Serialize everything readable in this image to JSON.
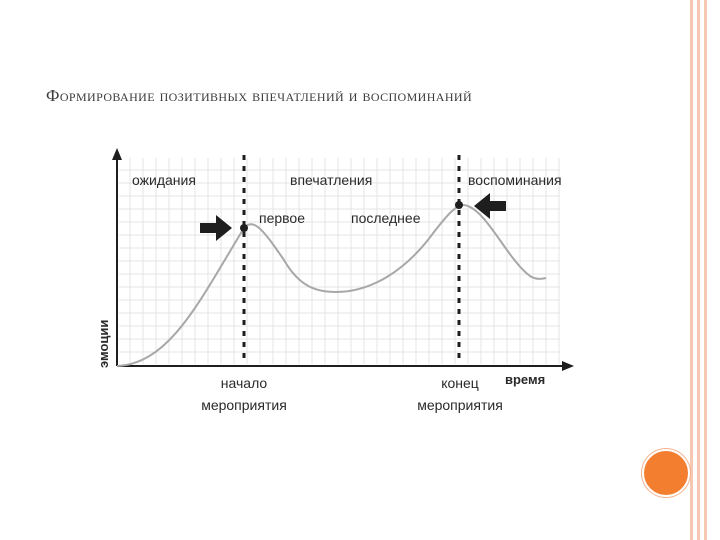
{
  "slide": {
    "title": "Формирование позитивных впечатлений и воспоминаний"
  },
  "diagram": {
    "y_axis_label": "эмоции",
    "x_axis_label": "время",
    "zone_labels": {
      "expectations": "ожидания",
      "impressions": "впечатления",
      "memories": "воспоминания"
    },
    "point_labels": {
      "first": "первое",
      "last": "последнее"
    },
    "start_label": [
      "начало",
      "мероприятия"
    ],
    "end_label": [
      "конец",
      "мероприятия"
    ]
  },
  "colors": {
    "frame": "#f6c7b3",
    "accent_circle": "#f47e2f",
    "curve": "#a8a8a8",
    "axis": "#1e1e1e",
    "grid": "#e4e4e4"
  }
}
